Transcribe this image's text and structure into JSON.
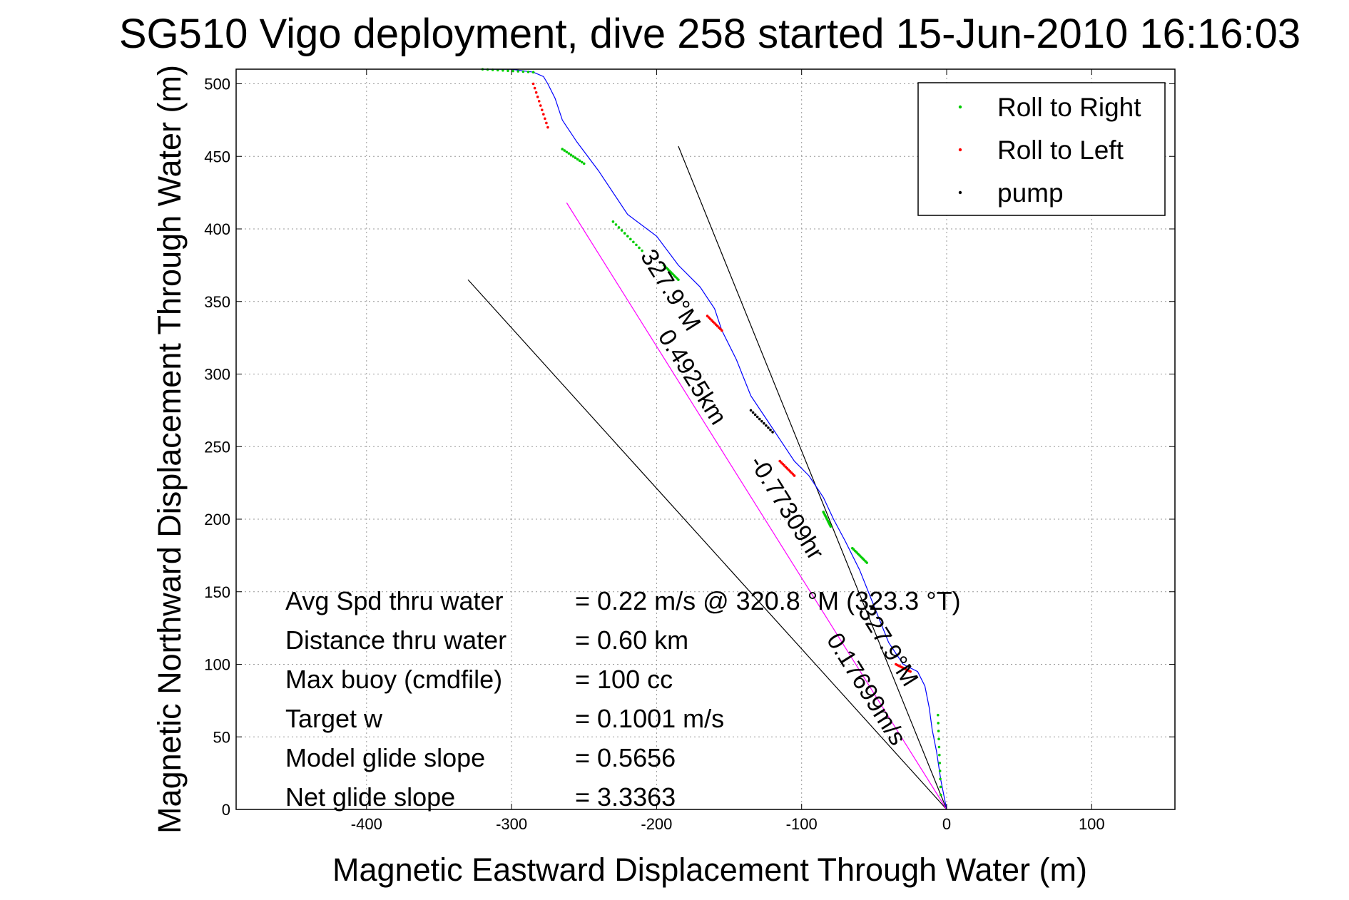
{
  "chart_data": {
    "type": "line",
    "title": "SG510 Vigo deployment, dive 258 started 15-Jun-2010 16:16:03",
    "xlabel": "Magnetic Eastward Displacement Through Water (m)",
    "ylabel": "Magnetic Northward Displacement Through Water (m)",
    "xlim": [
      -490,
      155
    ],
    "ylim": [
      0,
      510
    ],
    "xticks": [
      -400,
      -300,
      -200,
      -100,
      0,
      100
    ],
    "yticks": [
      0,
      50,
      100,
      150,
      200,
      250,
      300,
      350,
      400,
      450,
      500
    ],
    "grid": true,
    "legend_position": "top-right",
    "legend": [
      {
        "label": "Roll to Right",
        "color": "#00cc00"
      },
      {
        "label": "Roll to Left",
        "color": "#ff0000"
      },
      {
        "label": "pump",
        "color": "#000000"
      }
    ],
    "track": {
      "name": "",
      "color": "#0000ff",
      "x": [
        0,
        -4,
        -7,
        -10,
        -12,
        -15,
        -20,
        -30,
        -40,
        -50,
        -60,
        -70,
        -78,
        -85,
        -95,
        -105,
        -115,
        -125,
        -135,
        -145,
        -155,
        -160,
        -170,
        -185,
        -200,
        -220,
        -240,
        -255,
        -265,
        -270,
        -275,
        -278,
        -285,
        -300,
        -320
      ],
      "y": [
        0,
        20,
        40,
        55,
        70,
        85,
        95,
        100,
        115,
        140,
        165,
        185,
        200,
        215,
        230,
        240,
        255,
        270,
        285,
        310,
        330,
        345,
        360,
        375,
        395,
        410,
        440,
        460,
        475,
        490,
        500,
        505,
        508,
        510,
        510
      ]
    },
    "markers": [
      {
        "name": "Roll to Right",
        "color": "#00cc00",
        "segments": [
          [
            [
              -4,
              10
            ],
            [
              -6,
              65
            ]
          ],
          [
            [
              -55,
              170
            ],
            [
              -65,
              180
            ]
          ],
          [
            [
              -80,
              195
            ],
            [
              -85,
              205
            ]
          ],
          [
            [
              -185,
              365
            ],
            [
              -195,
              375
            ]
          ],
          [
            [
              -210,
              385
            ],
            [
              -230,
              405
            ]
          ],
          [
            [
              -250,
              445
            ],
            [
              -265,
              455
            ]
          ],
          [
            [
              -285,
              508
            ],
            [
              -320,
              510
            ]
          ]
        ]
      },
      {
        "name": "Roll to Left",
        "color": "#ff0000",
        "segments": [
          [
            [
              -25,
              95
            ],
            [
              -35,
              100
            ]
          ],
          [
            [
              -105,
              230
            ],
            [
              -115,
              240
            ]
          ],
          [
            [
              -155,
              330
            ],
            [
              -165,
              340
            ]
          ],
          [
            [
              -275,
              470
            ],
            [
              -285,
              500
            ]
          ]
        ]
      },
      {
        "name": "pump",
        "color": "#000000",
        "segments": [
          [
            [
              -120,
              260
            ],
            [
              -135,
              275
            ]
          ]
        ]
      }
    ],
    "reference_lines": [
      {
        "name": "",
        "color": "#000000",
        "x": [
          0,
          -330
        ],
        "y": [
          0,
          365
        ]
      },
      {
        "name": "",
        "color": "#000000",
        "x": [
          0,
          -185
        ],
        "y": [
          0,
          457
        ]
      },
      {
        "name": "",
        "color": "#ff00ff",
        "x": [
          0,
          -262
        ],
        "y": [
          0,
          418
        ]
      }
    ],
    "rotated_labels": [
      {
        "text": "327.9°M",
        "anchor_x": -195,
        "anchor_y": 355,
        "angle": 58
      },
      {
        "text": "0.4925km",
        "anchor_x": -180,
        "anchor_y": 295,
        "angle": 58
      },
      {
        "text": "-0.77309hr",
        "anchor_x": -115,
        "anchor_y": 205,
        "angle": 58
      },
      {
        "text": "0.17699m/s",
        "anchor_x": -60,
        "anchor_y": 80,
        "angle": 58
      },
      {
        "text": "327.9°M",
        "anchor_x": -45,
        "anchor_y": 110,
        "angle": 58
      }
    ],
    "annotations": [
      {
        "label": "Avg Spd thru water",
        "value": "=  0.22 m/s @ 320.8 °M (323.3 °T)"
      },
      {
        "label": "Distance thru water",
        "value": "=  0.60 km"
      },
      {
        "label": "Max buoy (cmdfile)",
        "value": "= 100 cc"
      },
      {
        "label": "Target w",
        "value": "= 0.1001 m/s"
      },
      {
        "label": "Model glide slope",
        "value": "= 0.5656"
      },
      {
        "label": "Net glide slope",
        "value": "= 3.3363"
      }
    ]
  }
}
